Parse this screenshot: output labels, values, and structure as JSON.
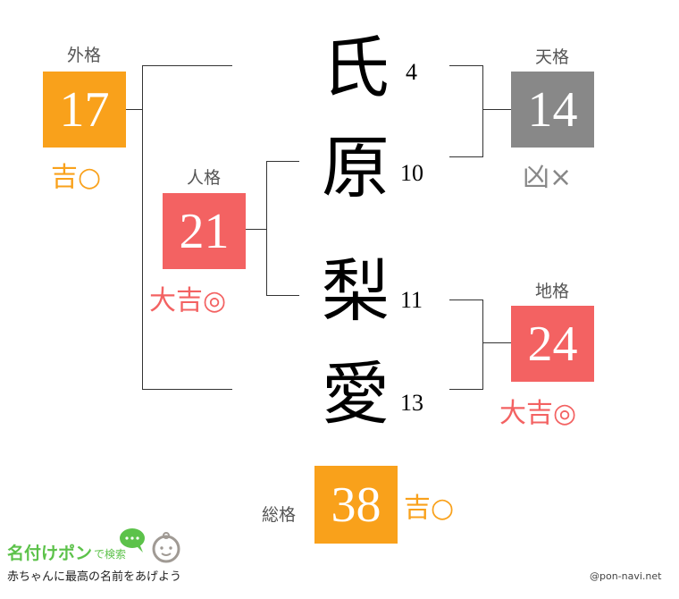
{
  "colors": {
    "kichi": "#f9a11b",
    "daikichi": "#f36262",
    "kyo": "#888888"
  },
  "name": [
    {
      "char": "氏",
      "strokes": "4"
    },
    {
      "char": "原",
      "strokes": "10"
    },
    {
      "char": "梨",
      "strokes": "11"
    },
    {
      "char": "愛",
      "strokes": "13"
    }
  ],
  "gaikaku": {
    "label": "外格",
    "value": "17",
    "fortune": "吉○"
  },
  "jinkaku": {
    "label": "人格",
    "value": "21",
    "fortune": "大吉◎"
  },
  "tenkaku": {
    "label": "天格",
    "value": "14",
    "fortune": "凶×"
  },
  "chikaku": {
    "label": "地格",
    "value": "24",
    "fortune": "大吉◎"
  },
  "soukaku": {
    "label": "総格",
    "value": "38",
    "fortune": "吉○"
  },
  "footer": {
    "logo": "名付けポン",
    "logo_suffix": "で検索",
    "tagline": "赤ちゃんに最高の名前をあげよう",
    "credit": "@pon-navi.net"
  }
}
